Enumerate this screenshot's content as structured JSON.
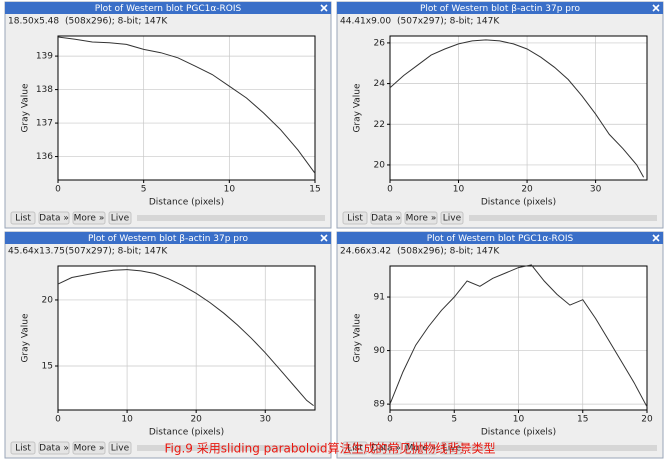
{
  "chart_data": [
    {
      "type": "line",
      "window_title": "Plot of Western blot PGC1α-ROIS",
      "info": [
        "18.50x5.48",
        "(508x296); 8-bit; 147K"
      ],
      "x_label": "Distance (pixels)",
      "y_label": "Gray Value",
      "color": "#333333",
      "grid": true,
      "x": [
        0,
        1,
        2,
        3,
        4,
        5,
        6,
        7,
        8,
        9,
        10,
        11,
        12,
        13,
        14,
        15
      ],
      "values": [
        139.57,
        139.5,
        139.42,
        139.4,
        139.35,
        139.2,
        139.1,
        138.95,
        138.7,
        138.45,
        138.1,
        137.75,
        137.3,
        136.8,
        136.2,
        135.5
      ],
      "xlim": [
        0,
        15
      ],
      "xticks": [
        0,
        5,
        10,
        15
      ],
      "ylim": [
        135.3,
        139.6
      ],
      "yticks": [
        136,
        137,
        138,
        139
      ]
    },
    {
      "type": "line",
      "window_title": "Plot of Western blot β-actin 37p pro",
      "info": [
        "44.41x9.00",
        "(507x297); 8-bit; 147K"
      ],
      "x_label": "Distance (pixels)",
      "y_label": "Gray Value",
      "color": "#333333",
      "grid": true,
      "x": [
        0,
        2,
        4,
        6,
        8,
        10,
        12,
        14,
        16,
        18,
        20,
        22,
        24,
        26,
        28,
        30,
        32,
        34,
        36,
        37
      ],
      "values": [
        23.8,
        24.4,
        24.9,
        25.4,
        25.7,
        25.95,
        26.1,
        26.15,
        26.1,
        25.95,
        25.7,
        25.3,
        24.8,
        24.2,
        23.4,
        22.5,
        21.5,
        20.8,
        20.0,
        19.4
      ],
      "xlim": [
        0,
        37.5
      ],
      "xticks": [
        0,
        10,
        20,
        30
      ],
      "ylim": [
        19.26,
        26.34
      ],
      "yticks": [
        20,
        22,
        24,
        26
      ]
    },
    {
      "type": "line",
      "window_title": "Plot of Western blot β-actin 37p pro",
      "info": [
        "45.64x13.75",
        "(507x297); 8-bit; 147K"
      ],
      "x_label": "Distance (pixels)",
      "y_label": "Gray Value",
      "color": "#333333",
      "grid": true,
      "x": [
        0,
        2,
        4,
        6,
        8,
        10,
        12,
        14,
        16,
        18,
        20,
        22,
        24,
        26,
        28,
        30,
        32,
        34,
        36,
        37
      ],
      "values": [
        21.2,
        21.7,
        21.9,
        22.1,
        22.25,
        22.3,
        22.2,
        22.0,
        21.6,
        21.1,
        20.5,
        19.8,
        19.0,
        18.1,
        17.1,
        16.0,
        14.8,
        13.6,
        12.4,
        12.0
      ],
      "xlim": [
        0,
        37.2
      ],
      "xticks": [
        0,
        10,
        20,
        30
      ],
      "ylim": [
        11.67,
        22.57
      ],
      "yticks": [
        15,
        20
      ]
    },
    {
      "type": "line",
      "window_title": "Plot of Western blot PGC1α-ROIS",
      "info": [
        "24.66x3.42",
        "(508x296); 8-bit; 147K"
      ],
      "x_label": "Distance (pixels)",
      "y_label": "Gray Value",
      "color": "#333333",
      "grid": true,
      "x": [
        0,
        1,
        2,
        3,
        4,
        5,
        6,
        7,
        8,
        9,
        10,
        11,
        12,
        13,
        14,
        15,
        16,
        17,
        18,
        19,
        20
      ],
      "values": [
        89.0,
        89.6,
        90.1,
        90.45,
        90.75,
        91.0,
        91.3,
        91.2,
        91.35,
        91.45,
        91.55,
        91.6,
        91.3,
        91.05,
        90.85,
        90.95,
        90.6,
        90.2,
        89.8,
        89.4,
        88.95
      ],
      "xlim": [
        0,
        20
      ],
      "xticks": [
        0,
        5,
        10,
        15,
        20
      ],
      "ylim": [
        88.89,
        91.58
      ],
      "yticks": [
        89,
        90,
        91
      ]
    }
  ],
  "toolbar": [
    "List",
    "Data »",
    "More »",
    "Live"
  ],
  "caption": "Fig.9 采用sliding paraboloid算法生成的常见抛物线背景类型"
}
